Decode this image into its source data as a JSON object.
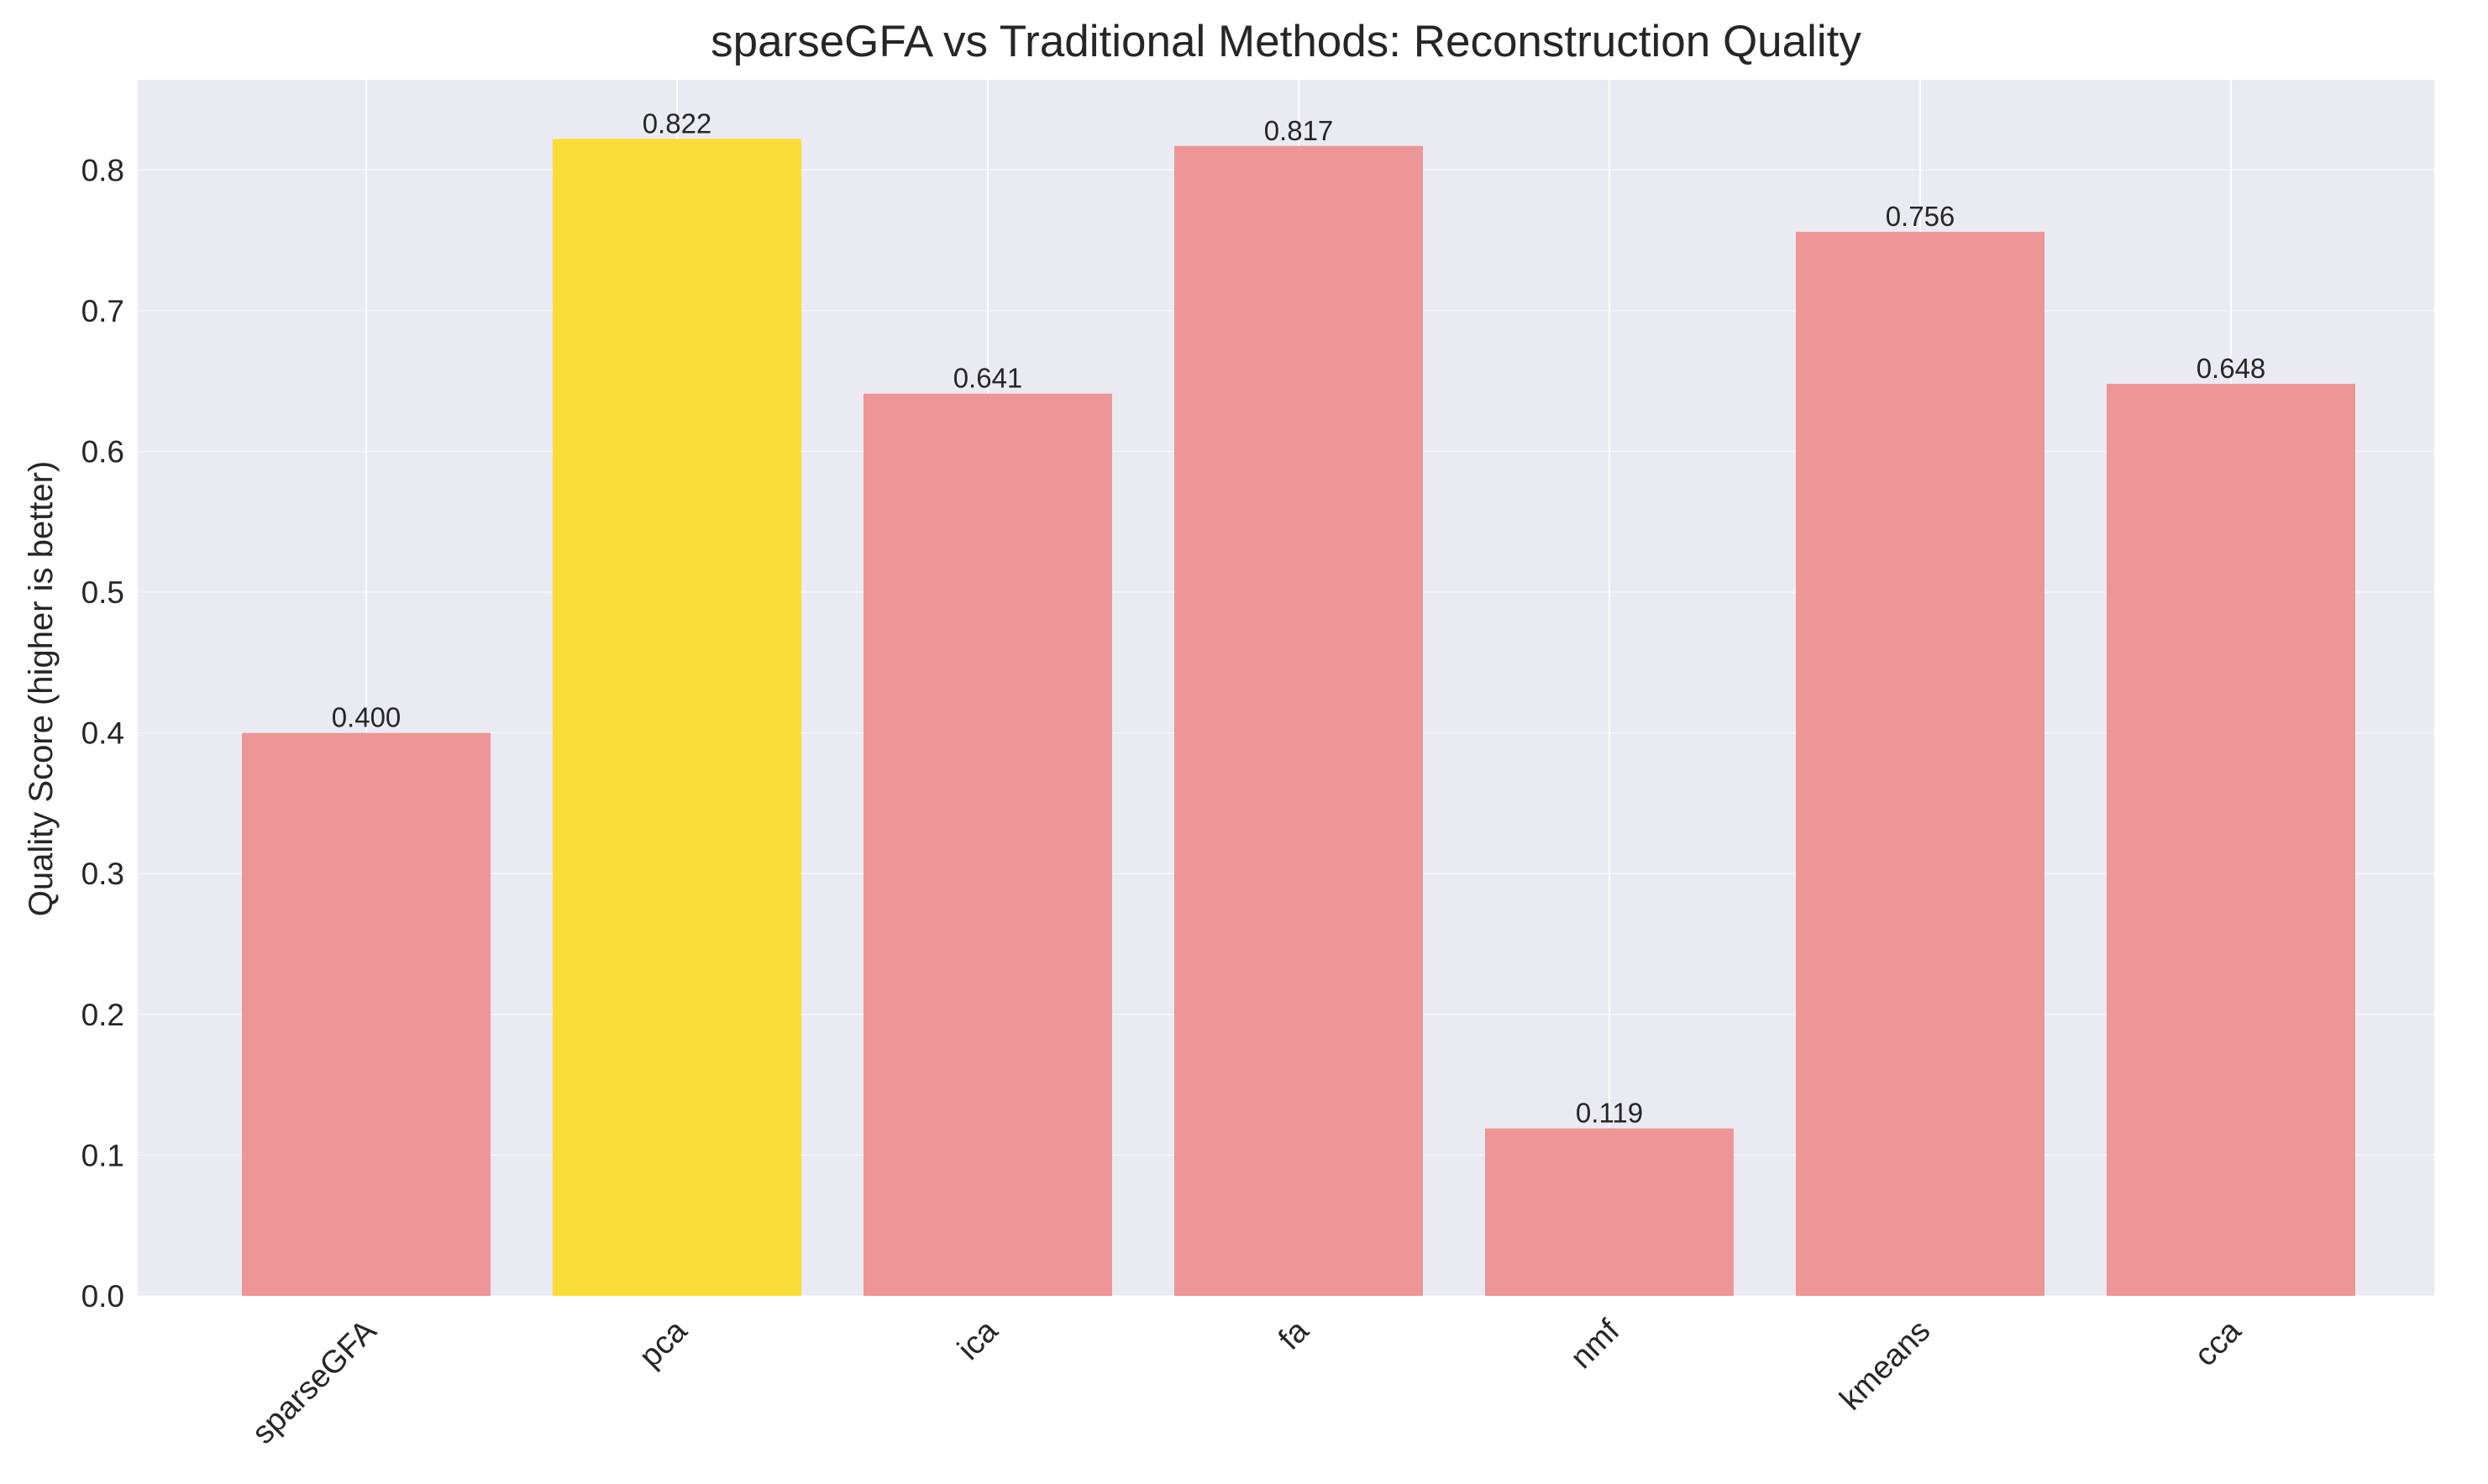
{
  "chart_data": {
    "type": "bar",
    "title": "sparseGFA vs Traditional Methods: Reconstruction Quality",
    "xlabel": "",
    "ylabel": "Quality Score (higher is better)",
    "categories": [
      "sparseGFA",
      "pca",
      "ica",
      "fa",
      "nmf",
      "kmeans",
      "cca"
    ],
    "values": [
      0.4,
      0.822,
      0.641,
      0.817,
      0.119,
      0.756,
      0.648
    ],
    "value_labels": [
      "0.400",
      "0.822",
      "0.641",
      "0.817",
      "0.119",
      "0.756",
      "0.648"
    ],
    "highlight_index": 1,
    "ylim": [
      0,
      0.864
    ],
    "yticks": [
      0.0,
      0.1,
      0.2,
      0.3,
      0.4,
      0.5,
      0.6,
      0.7,
      0.8
    ],
    "ytick_labels": [
      "0.0",
      "0.1",
      "0.2",
      "0.3",
      "0.4",
      "0.5",
      "0.6",
      "0.7",
      "0.8"
    ],
    "grid": true,
    "legend": "none",
    "colors": {
      "bar": "#ee9697",
      "highlight": "#f9dc36",
      "plot_background": "#eaeaf2",
      "grid": "#ffffff",
      "text": "#262626"
    }
  }
}
